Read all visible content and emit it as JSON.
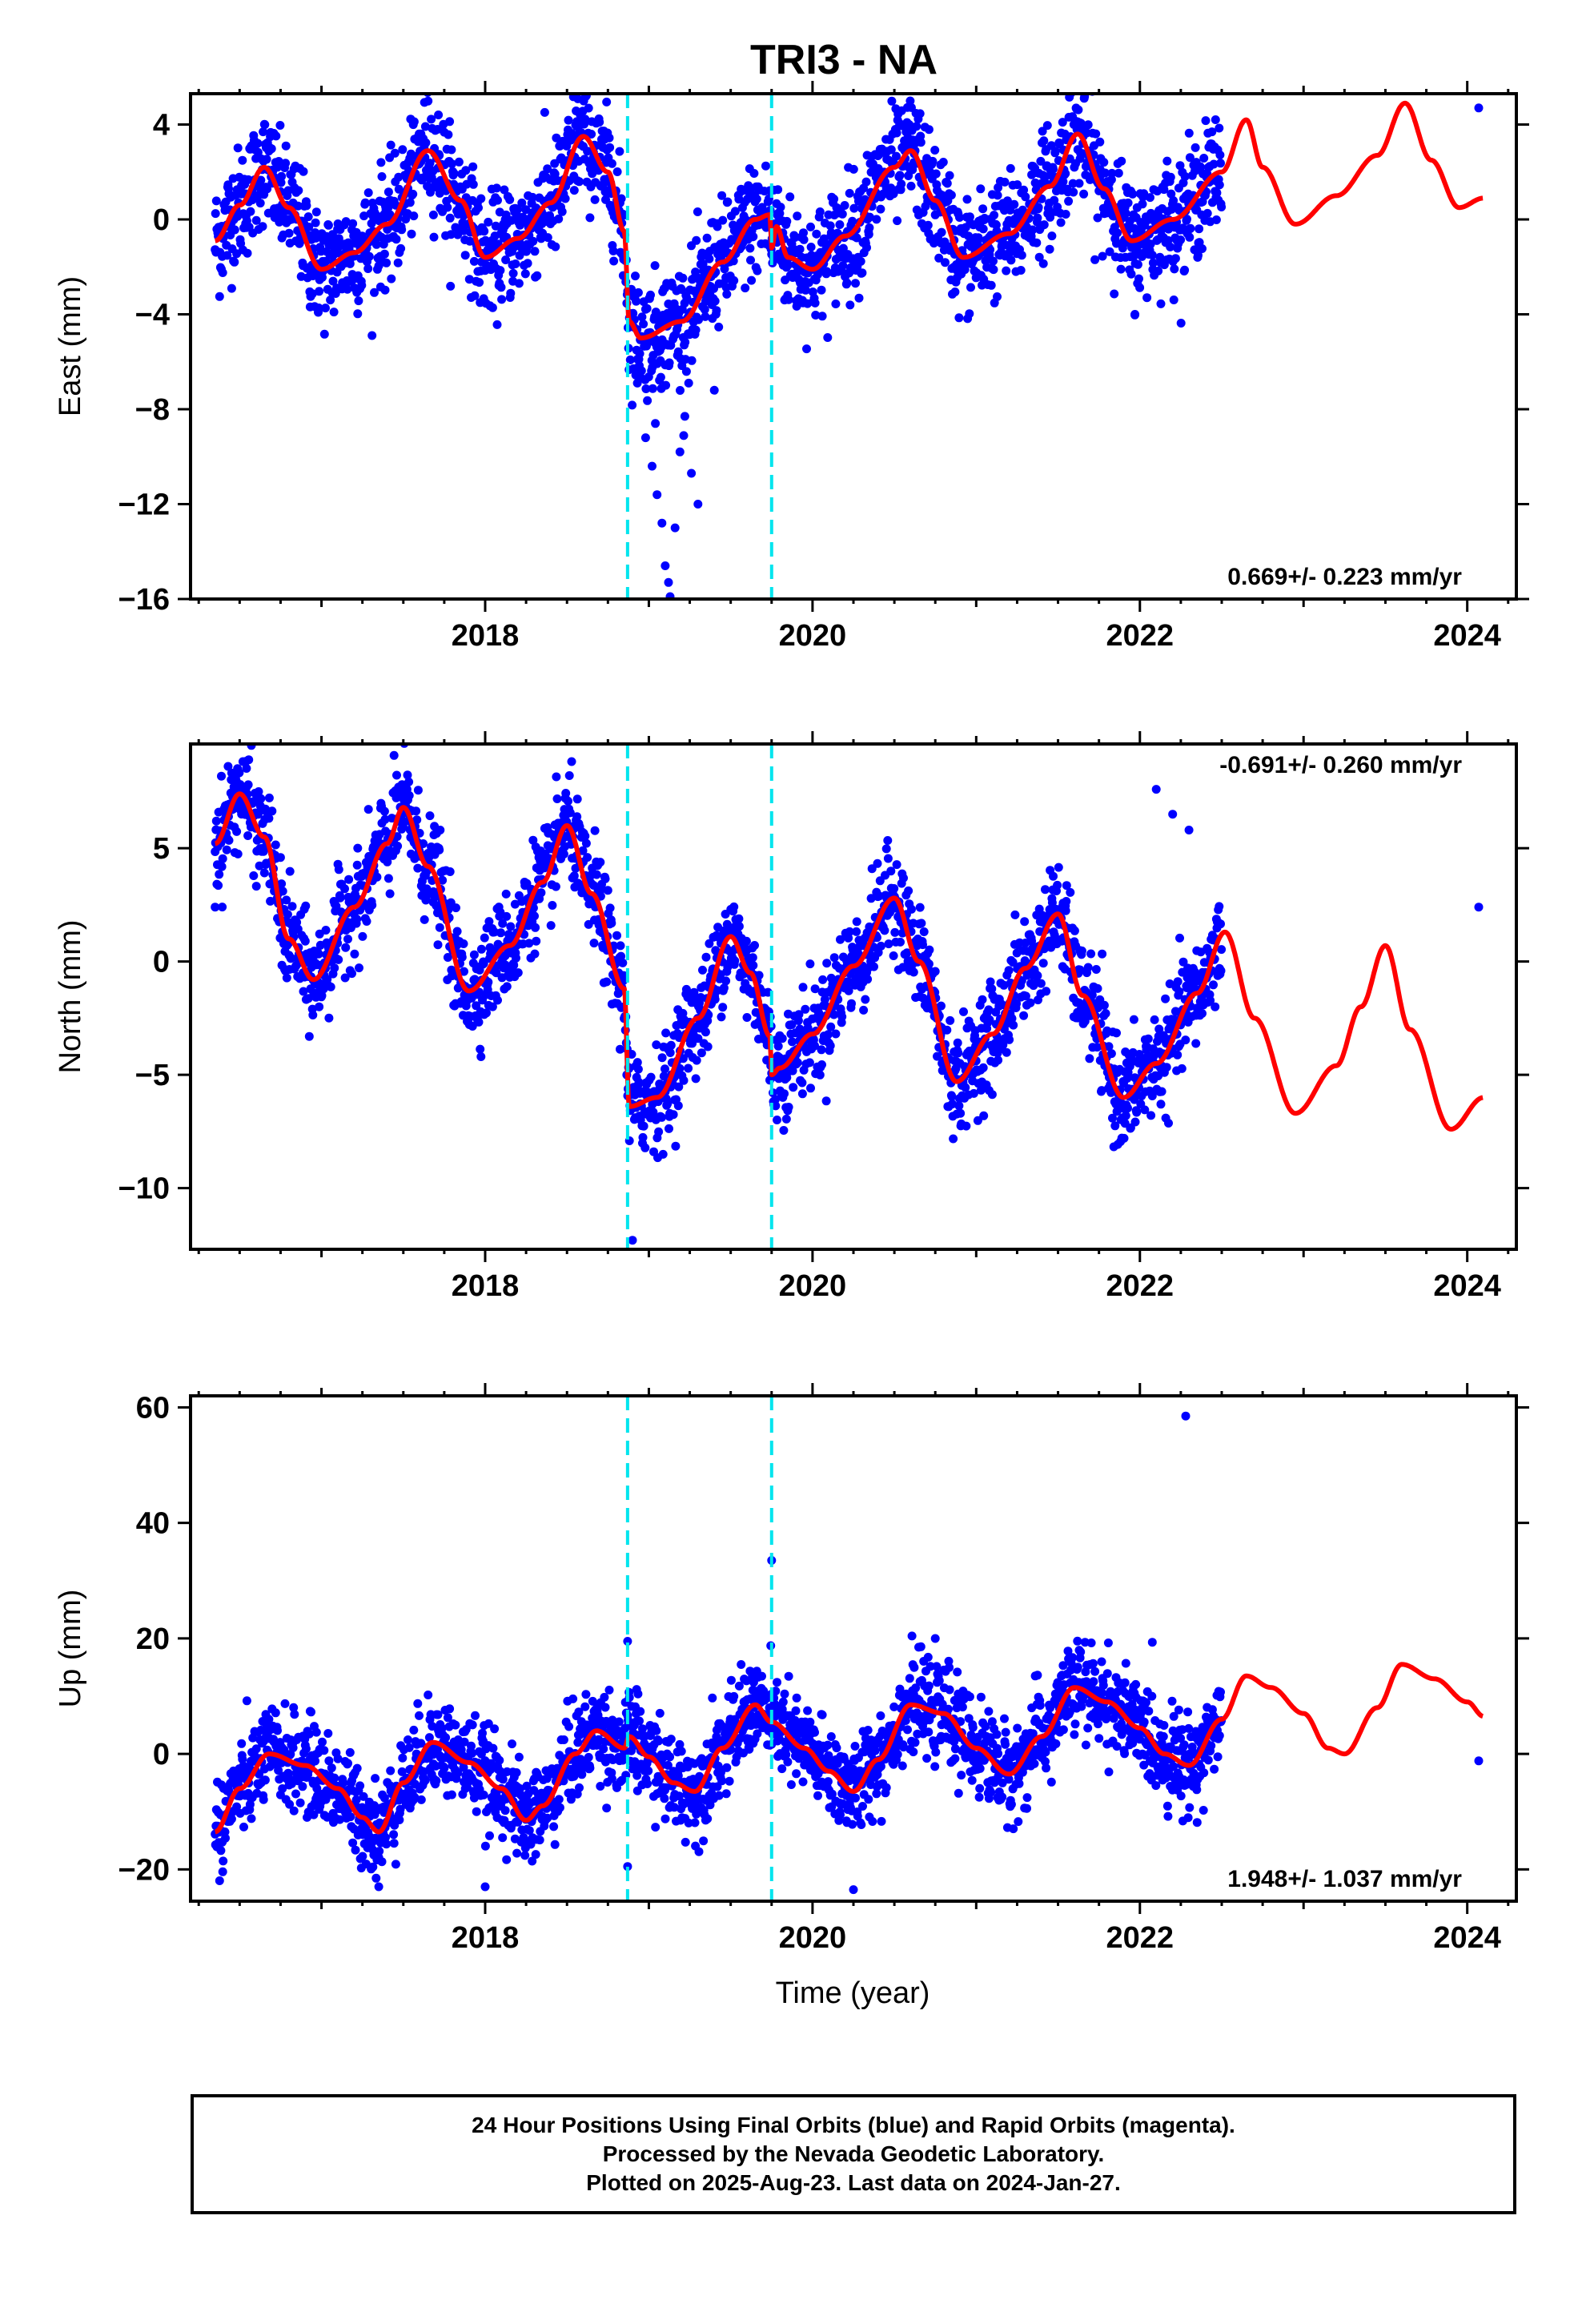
{
  "figure": {
    "title": "TRI3 - NA",
    "xlabel": "Time (year)"
  },
  "caption": {
    "line1": "24 Hour Positions Using Final Orbits (blue) and Rapid Orbits (magenta).",
    "line2": "Processed by the Nevada Geodetic Laboratory.",
    "line3": "Plotted on 2025-Aug-23. Last data on 2024-Jan-27."
  },
  "colors": {
    "points": "#0000ff",
    "model": "#ff0000",
    "events": "#00e5ee",
    "frame": "#000000"
  },
  "chart_data": [
    {
      "type": "scatter",
      "panel": "east",
      "ylabel": "East (mm)",
      "xlim": [
        2016.2,
        2024.3
      ],
      "ylim": [
        -16,
        5.3
      ],
      "xticks": [
        2018,
        2020,
        2022,
        2024
      ],
      "yticks": [
        4,
        0,
        -4,
        -8,
        -12,
        -16
      ],
      "rate_label": "0.669+/- 0.223 mm/yr",
      "rate_position": "bottom-right",
      "event_lines_x": [
        2018.87,
        2019.75
      ],
      "model_knots": [
        [
          2016.35,
          -0.9
        ],
        [
          2016.5,
          0.6
        ],
        [
          2016.65,
          2.2
        ],
        [
          2016.8,
          0.5
        ],
        [
          2017.0,
          -2.1
        ],
        [
          2017.2,
          -1.4
        ],
        [
          2017.4,
          -0.2
        ],
        [
          2017.65,
          2.9
        ],
        [
          2017.85,
          0.8
        ],
        [
          2018.0,
          -1.6
        ],
        [
          2018.2,
          -0.8
        ],
        [
          2018.4,
          0.7
        ],
        [
          2018.6,
          3.5
        ],
        [
          2018.75,
          2.0
        ],
        [
          2018.85,
          -0.5
        ],
        [
          2018.88,
          -4.3
        ],
        [
          2018.95,
          -5.0
        ],
        [
          2019.2,
          -4.3
        ],
        [
          2019.45,
          -1.8
        ],
        [
          2019.65,
          0.0
        ],
        [
          2019.74,
          0.2
        ],
        [
          2019.75,
          -1.2
        ],
        [
          2019.78,
          -0.3
        ],
        [
          2019.85,
          -1.6
        ],
        [
          2020.0,
          -2.1
        ],
        [
          2020.2,
          -0.7
        ],
        [
          2020.5,
          2.2
        ],
        [
          2020.6,
          2.9
        ],
        [
          2020.75,
          0.8
        ],
        [
          2020.92,
          -1.6
        ],
        [
          2021.2,
          -0.6
        ],
        [
          2021.45,
          1.4
        ],
        [
          2021.62,
          3.6
        ],
        [
          2021.78,
          1.3
        ],
        [
          2021.95,
          -0.9
        ],
        [
          2022.2,
          0.0
        ],
        [
          2022.5,
          2.0
        ],
        [
          2022.65,
          4.2
        ],
        [
          2022.75,
          2.2
        ],
        [
          2022.95,
          -0.2
        ],
        [
          2023.2,
          1.0
        ],
        [
          2023.45,
          2.7
        ],
        [
          2023.62,
          4.9
        ],
        [
          2023.78,
          2.5
        ],
        [
          2023.95,
          0.5
        ],
        [
          2024.1,
          0.9
        ]
      ],
      "data_start": 2016.35,
      "data_end": 2022.5,
      "noise_sd": 1.2,
      "outliers": [
        [
          2018.93,
          -6.9
        ],
        [
          2018.98,
          -9.2
        ],
        [
          2019.02,
          -10.4
        ],
        [
          2019.05,
          -11.6
        ],
        [
          2019.08,
          -12.8
        ],
        [
          2019.1,
          -14.6
        ],
        [
          2019.12,
          -15.3
        ],
        [
          2019.13,
          -15.9
        ],
        [
          2019.16,
          -13.0
        ],
        [
          2019.19,
          -9.8
        ],
        [
          2019.22,
          -8.3
        ],
        [
          2019.26,
          -10.7
        ],
        [
          2019.3,
          -12.0
        ],
        [
          2019.4,
          -7.2
        ],
        [
          2019.04,
          -8.6
        ],
        [
          2021.97,
          -4.0
        ],
        [
          2024.07,
          4.7
        ]
      ]
    },
    {
      "type": "scatter",
      "panel": "north",
      "ylabel": "North (mm)",
      "xlim": [
        2016.2,
        2024.3
      ],
      "ylim": [
        -12.7,
        9.6
      ],
      "xticks": [
        2018,
        2020,
        2022,
        2024
      ],
      "yticks": [
        5,
        0,
        -5,
        -10
      ],
      "rate_label": "-0.691+/- 0.260 mm/yr",
      "rate_position": "top-right",
      "event_lines_x": [
        2018.87,
        2019.75
      ],
      "model_knots": [
        [
          2016.35,
          5.2
        ],
        [
          2016.5,
          7.4
        ],
        [
          2016.65,
          5.5
        ],
        [
          2016.8,
          1.0
        ],
        [
          2016.95,
          -0.8
        ],
        [
          2017.2,
          2.4
        ],
        [
          2017.4,
          5.2
        ],
        [
          2017.5,
          6.8
        ],
        [
          2017.65,
          4.2
        ],
        [
          2017.9,
          -1.3
        ],
        [
          2018.15,
          0.7
        ],
        [
          2018.35,
          3.5
        ],
        [
          2018.5,
          6.0
        ],
        [
          2018.65,
          3.0
        ],
        [
          2018.85,
          -1.2
        ],
        [
          2018.88,
          -6.4
        ],
        [
          2019.05,
          -6.0
        ],
        [
          2019.3,
          -2.5
        ],
        [
          2019.5,
          1.1
        ],
        [
          2019.62,
          -0.5
        ],
        [
          2019.74,
          -3.3
        ],
        [
          2019.75,
          -5.0
        ],
        [
          2019.8,
          -4.7
        ],
        [
          2020.0,
          -3.2
        ],
        [
          2020.25,
          -0.2
        ],
        [
          2020.5,
          2.8
        ],
        [
          2020.65,
          0.0
        ],
        [
          2020.88,
          -5.3
        ],
        [
          2021.1,
          -3.2
        ],
        [
          2021.3,
          -0.3
        ],
        [
          2021.5,
          2.1
        ],
        [
          2021.65,
          -1.5
        ],
        [
          2021.9,
          -6.0
        ],
        [
          2022.1,
          -4.5
        ],
        [
          2022.35,
          -1.4
        ],
        [
          2022.52,
          1.3
        ],
        [
          2022.7,
          -2.5
        ],
        [
          2022.95,
          -6.7
        ],
        [
          2023.2,
          -4.6
        ],
        [
          2023.35,
          -2.0
        ],
        [
          2023.5,
          0.7
        ],
        [
          2023.65,
          -3.0
        ],
        [
          2023.9,
          -7.4
        ],
        [
          2024.1,
          -6.0
        ]
      ],
      "data_start": 2016.35,
      "data_end": 2022.5,
      "noise_sd": 1.1,
      "outliers": [
        [
          2018.9,
          -12.3
        ],
        [
          2022.1,
          7.6
        ],
        [
          2022.2,
          6.5
        ],
        [
          2022.3,
          5.8
        ],
        [
          2016.35,
          2.4
        ],
        [
          2024.07,
          2.4
        ]
      ]
    },
    {
      "type": "scatter",
      "panel": "up",
      "ylabel": "Up (mm)",
      "xlim": [
        2016.2,
        2024.3
      ],
      "ylim": [
        -25.5,
        62
      ],
      "xticks": [
        2018,
        2020,
        2022,
        2024
      ],
      "yticks": [
        60,
        40,
        20,
        0,
        -20
      ],
      "rate_label": "1.948+/- 1.037 mm/yr",
      "rate_position": "bottom-right",
      "event_lines_x": [
        2018.87,
        2019.75
      ],
      "model_knots": [
        [
          2016.35,
          -13.5
        ],
        [
          2016.5,
          -6.0
        ],
        [
          2016.68,
          0.0
        ],
        [
          2016.9,
          -2.0
        ],
        [
          2017.1,
          -6.0
        ],
        [
          2017.25,
          -11.0
        ],
        [
          2017.35,
          -13.5
        ],
        [
          2017.5,
          -5.0
        ],
        [
          2017.68,
          2.0
        ],
        [
          2017.9,
          -1.5
        ],
        [
          2018.1,
          -6.0
        ],
        [
          2018.25,
          -11.5
        ],
        [
          2018.35,
          -9.0
        ],
        [
          2018.55,
          0.0
        ],
        [
          2018.68,
          4.0
        ],
        [
          2018.85,
          1.0
        ],
        [
          2018.88,
          3.0
        ],
        [
          2019.0,
          -0.5
        ],
        [
          2019.15,
          -5.0
        ],
        [
          2019.28,
          -6.5
        ],
        [
          2019.45,
          1.0
        ],
        [
          2019.65,
          8.5
        ],
        [
          2019.75,
          5.5
        ],
        [
          2019.95,
          1.0
        ],
        [
          2020.1,
          -3.0
        ],
        [
          2020.25,
          -6.5
        ],
        [
          2020.4,
          -1.0
        ],
        [
          2020.6,
          8.5
        ],
        [
          2020.8,
          7.0
        ],
        [
          2021.0,
          1.0
        ],
        [
          2021.2,
          -3.5
        ],
        [
          2021.4,
          3.0
        ],
        [
          2021.6,
          11.5
        ],
        [
          2021.8,
          9.0
        ],
        [
          2022.0,
          4.5
        ],
        [
          2022.15,
          0.0
        ],
        [
          2022.3,
          -2.0
        ],
        [
          2022.5,
          6.0
        ],
        [
          2022.65,
          13.5
        ],
        [
          2022.8,
          11.5
        ],
        [
          2023.0,
          7.0
        ],
        [
          2023.15,
          1.0
        ],
        [
          2023.25,
          0.0
        ],
        [
          2023.45,
          8.0
        ],
        [
          2023.6,
          15.5
        ],
        [
          2023.8,
          13.0
        ],
        [
          2024.0,
          9.0
        ],
        [
          2024.1,
          6.5
        ]
      ],
      "data_start": 2016.35,
      "data_end": 2022.5,
      "noise_sd": 4.0,
      "outliers": [
        [
          2018.87,
          19.5
        ],
        [
          2018.87,
          -19.5
        ],
        [
          2019.75,
          33.5
        ],
        [
          2022.28,
          58.5
        ],
        [
          2020.25,
          -23.5
        ],
        [
          2018.0,
          -23.0
        ],
        [
          2017.35,
          -23.0
        ],
        [
          2024.07,
          -1.2
        ]
      ]
    }
  ]
}
